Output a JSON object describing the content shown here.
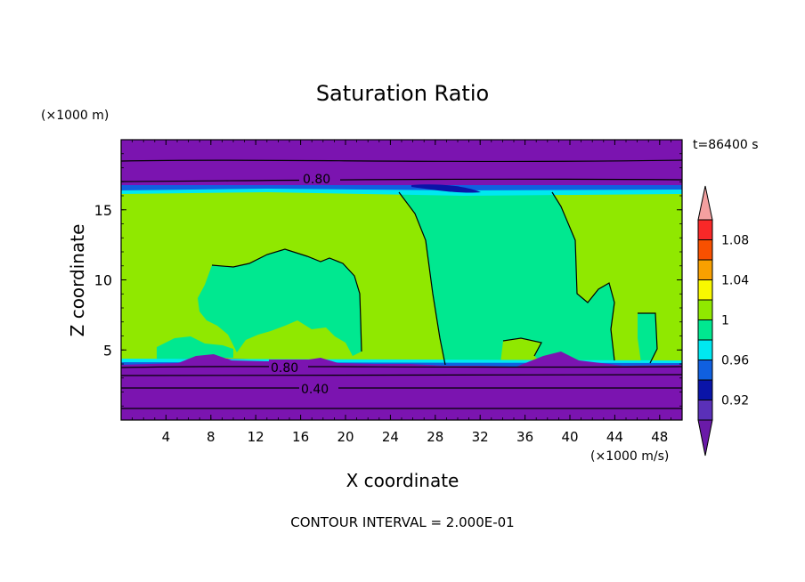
{
  "chart_data": {
    "type": "contour",
    "title": "Saturation Ratio",
    "xlabel": "X coordinate",
    "ylabel": "Z coordinate",
    "x_unit": "(×1000 m/s)",
    "y_unit": "(×1000 m)",
    "time_label": "t=86400 s",
    "footer": "CONTOUR INTERVAL = 2.000E-01",
    "xlim": [
      0,
      50
    ],
    "ylim": [
      0,
      20
    ],
    "x_ticks": [
      "4",
      "8",
      "12",
      "16",
      "20",
      "24",
      "28",
      "32",
      "36",
      "40",
      "44",
      "48"
    ],
    "y_ticks": [
      "5",
      "10",
      "15"
    ],
    "contour_labels": [
      "0.80",
      "0.80",
      "0.40"
    ],
    "colorbar": {
      "labels": [
        "1.08",
        "1.04",
        "1",
        "0.96",
        "0.92"
      ],
      "levels": [
        0.9,
        0.92,
        0.94,
        0.96,
        0.98,
        1.0,
        1.02,
        1.04,
        1.06,
        1.08,
        1.1
      ],
      "colors": [
        "#6a1aa8",
        "#5a30b8",
        "#0a14a8",
        "#1060e0",
        "#00e8f0",
        "#00e890",
        "#90e800",
        "#f8f800",
        "#f8a000",
        "#f85000",
        "#f82828",
        "#f4a0a0"
      ]
    },
    "colors": {
      "below": "#7b14b0",
      "band_lo": "#5a1a9a",
      "moist": "#00e890",
      "saturated": "#90e800",
      "edge_cyan": "#00e8f0",
      "edge_blue": "#1060e0"
    }
  }
}
